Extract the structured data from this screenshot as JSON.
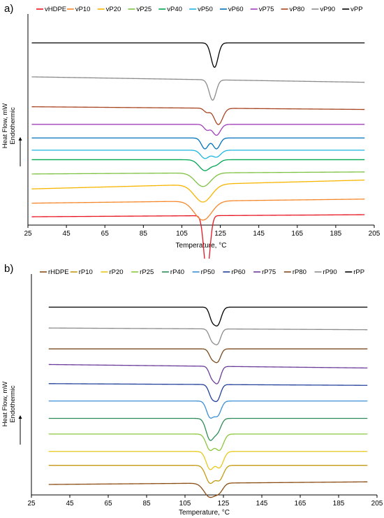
{
  "chart_data": [
    {
      "type": "line",
      "panel_label": "a)",
      "title": "",
      "xlabel": "Temperature, °C",
      "ylabel": "Heat Flow, mW",
      "ylabel_sub": "Endothermic",
      "xlim": [
        25,
        205
      ],
      "x_ticks": [
        25,
        45,
        65,
        85,
        105,
        125,
        145,
        165,
        185,
        205
      ],
      "y_ticks": false,
      "grid": false,
      "legend_position": "top",
      "series": [
        {
          "name": "vHDPE",
          "color": "#e8141f",
          "peaks": [
            {
              "x": 118,
              "depth": 42,
              "w": 1.6
            }
          ],
          "baseline_y": [
            1,
            2.5
          ]
        },
        {
          "name": "vP10",
          "color": "#f5872a",
          "peaks": [
            {
              "x": 116,
              "depth": 14,
              "w": 4.5
            }
          ],
          "baseline_y": [
            11,
            14
          ]
        },
        {
          "name": "vP20",
          "color": "#f7b500",
          "peaks": [
            {
              "x": 116,
              "depth": 13,
              "w": 4.5
            }
          ],
          "baseline_y": [
            21.5,
            28
          ]
        },
        {
          "name": "vP25",
          "color": "#7dc242",
          "peaks": [
            {
              "x": 116,
              "depth": 10,
              "w": 4
            }
          ],
          "baseline_y": [
            32.5,
            34
          ]
        },
        {
          "name": "vP40",
          "color": "#00a651",
          "peaks": [
            {
              "x": 117,
              "depth": 8,
              "w": 3
            },
            {
              "x": 123,
              "depth": 3,
              "w": 2
            }
          ],
          "baseline_y": [
            43,
            43
          ]
        },
        {
          "name": "vP50",
          "color": "#1cb5e0",
          "peaks": [
            {
              "x": 117,
              "depth": 6,
              "w": 2.2
            },
            {
              "x": 123,
              "depth": 5,
              "w": 2.2
            }
          ],
          "baseline_y": [
            50,
            50
          ]
        },
        {
          "name": "vP60",
          "color": "#0072bb",
          "peaks": [
            {
              "x": 117,
              "depth": 8,
              "w": 1.8
            },
            {
              "x": 123,
              "depth": 8,
              "w": 1.8
            }
          ],
          "baseline_y": [
            59,
            59
          ]
        },
        {
          "name": "vP75",
          "color": "#a23fbd",
          "peaks": [
            {
              "x": 118,
              "depth": 4,
              "w": 1.5
            },
            {
              "x": 123,
              "depth": 8,
              "w": 2
            }
          ],
          "baseline_y": [
            69,
            69
          ]
        },
        {
          "name": "vP80",
          "color": "#a84420",
          "peaks": [
            {
              "x": 118,
              "depth": 3,
              "w": 1.5
            },
            {
              "x": 124,
              "depth": 12,
              "w": 2.2
            }
          ],
          "baseline_y": [
            82,
            80
          ]
        },
        {
          "name": "vP90",
          "color": "#8c8c8c",
          "peaks": [
            {
              "x": 121,
              "depth": 15,
              "w": 1.8
            }
          ],
          "baseline_y": [
            104,
            100
          ]
        },
        {
          "name": "vPP",
          "color": "#000000",
          "peaks": [
            {
              "x": 122,
              "depth": 18,
              "w": 1.8
            }
          ],
          "baseline_y": [
            129,
            129
          ]
        }
      ]
    },
    {
      "type": "line",
      "panel_label": "b)",
      "title": "",
      "xlabel": "Temperature, °C",
      "ylabel": "Heat Flow, mW",
      "ylabel_sub": "Endothermic",
      "xlim": [
        25,
        205
      ],
      "x_ticks": [
        25,
        45,
        65,
        85,
        105,
        125,
        145,
        165,
        185,
        205
      ],
      "y_ticks": false,
      "grid": false,
      "legend_position": "top",
      "series": [
        {
          "name": "rHDPE",
          "color": "#8b4c13",
          "peaks": [
            {
              "x": 118,
              "depth": 8,
              "w": 3
            },
            {
              "x": 123,
              "depth": 4,
              "w": 2
            }
          ],
          "baseline_y": [
            2,
            3.5
          ]
        },
        {
          "name": "rP10",
          "color": "#c39b12",
          "peaks": [
            {
              "x": 118,
              "depth": 10,
              "w": 2.2
            },
            {
              "x": 123,
              "depth": 8,
              "w": 2
            }
          ],
          "baseline_y": [
            13,
            13
          ]
        },
        {
          "name": "rP20",
          "color": "#e8c81c",
          "peaks": [
            {
              "x": 118,
              "depth": 10,
              "w": 2
            },
            {
              "x": 123,
              "depth": 9,
              "w": 2
            }
          ],
          "baseline_y": [
            21,
            21
          ]
        },
        {
          "name": "rP25",
          "color": "#8cc63f",
          "peaks": [
            {
              "x": 118,
              "depth": 9,
              "w": 2
            },
            {
              "x": 123,
              "depth": 9,
              "w": 2
            }
          ],
          "baseline_y": [
            31,
            31
          ]
        },
        {
          "name": "rP40",
          "color": "#2e8b57",
          "peaks": [
            {
              "x": 118,
              "depth": 12,
              "w": 2
            },
            {
              "x": 122,
              "depth": 7,
              "w": 1.8
            }
          ],
          "baseline_y": [
            40,
            40
          ]
        },
        {
          "name": "rP50",
          "color": "#3a8fd6",
          "peaks": [
            {
              "x": 118,
              "depth": 9,
              "w": 1.8
            },
            {
              "x": 122,
              "depth": 8,
              "w": 1.8
            }
          ],
          "baseline_y": [
            50,
            50
          ]
        },
        {
          "name": "rP60",
          "color": "#23409b",
          "peaks": [
            {
              "x": 119,
              "depth": 7,
              "w": 1.6
            },
            {
              "x": 122,
              "depth": 8,
              "w": 1.6
            }
          ],
          "baseline_y": [
            60,
            59
          ]
        },
        {
          "name": "rP75",
          "color": "#6a3d9a",
          "peaks": [
            {
              "x": 119,
              "depth": 6,
              "w": 1.5
            },
            {
              "x": 122,
              "depth": 9,
              "w": 1.6
            }
          ],
          "baseline_y": [
            71,
            69
          ]
        },
        {
          "name": "rP80",
          "color": "#7b4a1f",
          "peaks": [
            {
              "x": 119,
              "depth": 5,
              "w": 1.5
            },
            {
              "x": 122,
              "depth": 7,
              "w": 1.6
            }
          ],
          "baseline_y": [
            80,
            80
          ]
        },
        {
          "name": "rP90",
          "color": "#8c8c8c",
          "peaks": [
            {
              "x": 119,
              "depth": 6,
              "w": 1.5
            },
            {
              "x": 122,
              "depth": 8,
              "w": 1.6
            }
          ],
          "baseline_y": [
            92,
            91
          ]
        },
        {
          "name": "rPP",
          "color": "#000000",
          "peaks": [
            {
              "x": 119,
              "depth": 6,
              "w": 1.4
            },
            {
              "x": 122,
              "depth": 10,
              "w": 1.8
            }
          ],
          "baseline_y": [
            104,
            104
          ]
        }
      ]
    }
  ]
}
